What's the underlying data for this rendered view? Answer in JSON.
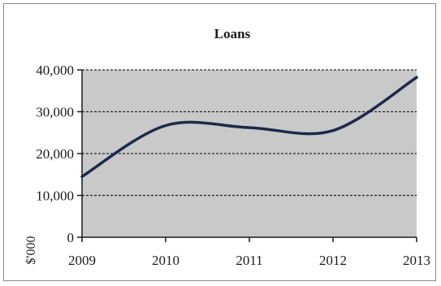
{
  "chart_data": {
    "type": "line",
    "title": "Loans",
    "xlabel": "",
    "ylabel": "$'000",
    "x": [
      "2009",
      "2010",
      "2011",
      "2012",
      "2013"
    ],
    "series": [
      {
        "values": [
          14500,
          26700,
          26200,
          25500,
          38200
        ]
      }
    ],
    "ylim": [
      0,
      40000
    ],
    "yticks": [
      "0",
      "10,000",
      "20,000",
      "30,000",
      "40,000"
    ],
    "grid": true,
    "legend": "none",
    "colors": {
      "line": "#1c2a4a",
      "plot_background": "#c9c9c9",
      "grid": "#2a2a2a",
      "axis": "#1b1b1b"
    }
  }
}
